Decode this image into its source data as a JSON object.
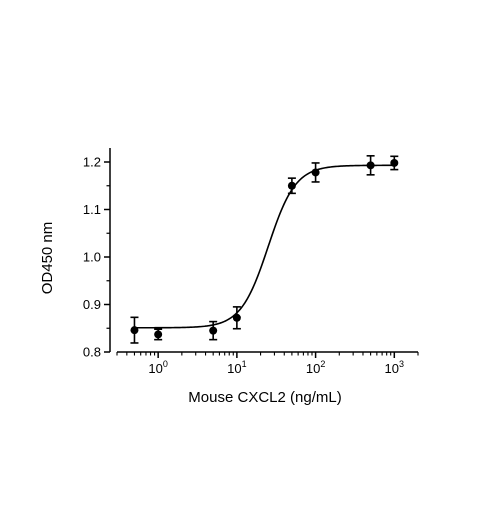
{
  "chart_data": {
    "type": "scatter",
    "title": "",
    "xlabel": "Mouse CXCL2 (ng/mL)",
    "ylabel": "OD450 nm",
    "x_scale": "log",
    "xlim": [
      0.3,
      2000
    ],
    "ylim": [
      0.8,
      1.23
    ],
    "x_ticks": [
      {
        "value": 1,
        "base": "10",
        "exp": "0"
      },
      {
        "value": 10,
        "base": "10",
        "exp": "1"
      },
      {
        "value": 100,
        "base": "10",
        "exp": "2"
      },
      {
        "value": 1000,
        "base": "10",
        "exp": "3"
      }
    ],
    "y_ticks": [
      "0.8",
      "0.9",
      "1.0",
      "1.1",
      "1.2"
    ],
    "grid": false,
    "legend": "none",
    "series": [
      {
        "x": [
          0.5,
          1,
          5,
          10,
          50,
          100,
          500,
          1000
        ],
        "y": [
          0.846,
          0.837,
          0.845,
          0.872,
          1.15,
          1.178,
          1.193,
          1.198
        ],
        "error": [
          0.027,
          0.011,
          0.019,
          0.023,
          0.016,
          0.02,
          0.02,
          0.014
        ],
        "color": "#000000"
      }
    ],
    "fit": {
      "model": "4PL",
      "bottom": 0.851,
      "top": 1.193,
      "ec50": 25,
      "hill": 2.5
    }
  }
}
